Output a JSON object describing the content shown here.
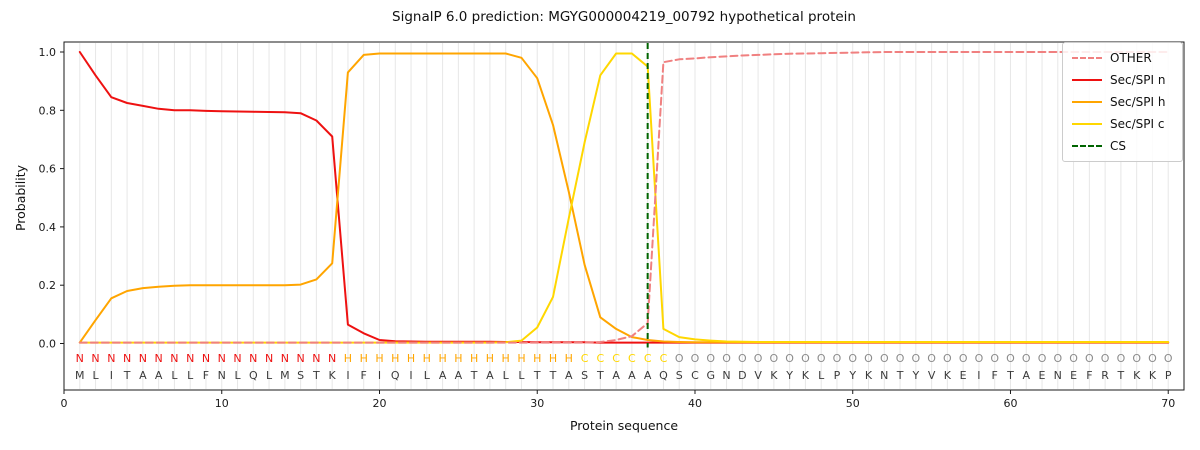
{
  "chart_data": {
    "type": "line",
    "title": "SignalP 6.0 prediction: MGYG000004219_00792 hypothetical protein",
    "xlabel": "Protein sequence",
    "ylabel": "Probability",
    "x_start": 1,
    "x_ticks": [
      0,
      10,
      20,
      30,
      40,
      50,
      60,
      70
    ],
    "y_ticks": [
      0.0,
      0.2,
      0.4,
      0.6,
      0.8,
      1.0
    ],
    "xlim": [
      0,
      71
    ],
    "ylim": [
      -0.16,
      1.035
    ],
    "grid": "vertical-per-residue",
    "legend_position": "upper right",
    "series": [
      {
        "name": "OTHER",
        "color": "#f08080",
        "style": "dashed",
        "values": [
          0.003,
          0.003,
          0.003,
          0.003,
          0.003,
          0.003,
          0.003,
          0.003,
          0.003,
          0.003,
          0.003,
          0.003,
          0.003,
          0.003,
          0.003,
          0.003,
          0.003,
          0.003,
          0.003,
          0.003,
          0.003,
          0.003,
          0.003,
          0.003,
          0.003,
          0.003,
          0.003,
          0.003,
          0.003,
          0.003,
          0.003,
          0.003,
          0.003,
          0.005,
          0.012,
          0.025,
          0.07,
          0.965,
          0.975,
          0.978,
          0.982,
          0.985,
          0.988,
          0.99,
          0.992,
          0.994,
          0.995,
          0.996,
          0.997,
          0.998,
          0.999,
          1.0,
          1.0,
          1.0,
          1.0,
          1.0,
          1.0,
          1.0,
          1.0,
          1.0,
          1.0,
          1.0,
          1.0,
          1.0,
          1.0,
          1.0,
          1.0,
          1.0,
          1.0,
          1.0
        ]
      },
      {
        "name": "Sec/SPI n",
        "color": "#ee1111",
        "style": "solid",
        "values": [
          1.0,
          0.92,
          0.845,
          0.825,
          0.815,
          0.805,
          0.8,
          0.8,
          0.798,
          0.797,
          0.796,
          0.795,
          0.794,
          0.793,
          0.79,
          0.765,
          0.71,
          0.065,
          0.035,
          0.012,
          0.008,
          0.007,
          0.006,
          0.006,
          0.006,
          0.006,
          0.006,
          0.005,
          0.005,
          0.004,
          0.004,
          0.004,
          0.004,
          0.003,
          0.003,
          0.003,
          0.003,
          0.003,
          0.003,
          0.003,
          0.003,
          0.003,
          0.003,
          0.003,
          0.003,
          0.003,
          0.003,
          0.003,
          0.003,
          0.003,
          0.003,
          0.003,
          0.003,
          0.003,
          0.003,
          0.003,
          0.003,
          0.003,
          0.003,
          0.003,
          0.003,
          0.003,
          0.003,
          0.003,
          0.003,
          0.003,
          0.003,
          0.003,
          0.003,
          0.003
        ]
      },
      {
        "name": "Sec/SPI h",
        "color": "#ffa500",
        "style": "solid",
        "values": [
          0.003,
          0.08,
          0.155,
          0.18,
          0.19,
          0.195,
          0.198,
          0.2,
          0.2,
          0.2,
          0.2,
          0.2,
          0.2,
          0.2,
          0.202,
          0.22,
          0.275,
          0.93,
          0.99,
          0.995,
          0.995,
          0.995,
          0.995,
          0.995,
          0.995,
          0.995,
          0.995,
          0.995,
          0.98,
          0.91,
          0.75,
          0.52,
          0.27,
          0.09,
          0.05,
          0.022,
          0.012,
          0.007,
          0.005,
          0.004,
          0.004,
          0.004,
          0.004,
          0.004,
          0.004,
          0.004,
          0.004,
          0.004,
          0.004,
          0.004,
          0.004,
          0.004,
          0.004,
          0.004,
          0.004,
          0.004,
          0.004,
          0.004,
          0.004,
          0.004,
          0.004,
          0.004,
          0.004,
          0.004,
          0.004,
          0.004,
          0.004,
          0.004,
          0.004,
          0.004
        ]
      },
      {
        "name": "Sec/SPI c",
        "color": "#ffd700",
        "style": "solid",
        "values": [
          0.003,
          0.003,
          0.003,
          0.003,
          0.003,
          0.003,
          0.003,
          0.003,
          0.003,
          0.003,
          0.003,
          0.003,
          0.003,
          0.003,
          0.003,
          0.003,
          0.003,
          0.003,
          0.003,
          0.003,
          0.003,
          0.003,
          0.003,
          0.003,
          0.003,
          0.003,
          0.003,
          0.004,
          0.01,
          0.055,
          0.16,
          0.43,
          0.69,
          0.92,
          0.995,
          0.995,
          0.95,
          0.05,
          0.022,
          0.014,
          0.01,
          0.007,
          0.006,
          0.005,
          0.005,
          0.005,
          0.005,
          0.005,
          0.005,
          0.005,
          0.005,
          0.005,
          0.005,
          0.005,
          0.005,
          0.005,
          0.005,
          0.005,
          0.005,
          0.005,
          0.005,
          0.005,
          0.005,
          0.005,
          0.005,
          0.005,
          0.005,
          0.005,
          0.005,
          0.005
        ]
      }
    ],
    "cs_marker": {
      "name": "CS",
      "position": 37,
      "color": "#006400",
      "style": "dashed"
    },
    "sequence": "MLITAALLFNLQLMSTKIFIQILAATALLTTASTAAAQSCGNDVKYKLPYKNTYVKEIFTAENEFRTKKP",
    "region_labels": "NNNNNNNNNNNNNNNNNHHHHHHHHHHHHHHHCCCCCCOOOOOOOOOOOOOOOOOOOOOOOOOOOOOOOO",
    "region_colors": {
      "N": "#ee1111",
      "H": "#ffa500",
      "C": "#ffd700",
      "O": "#8c8c8c"
    },
    "sequence_color": "#3a3a3a",
    "gridline_color": "#e7e7e7",
    "spine_color": "#1a1a1a"
  }
}
